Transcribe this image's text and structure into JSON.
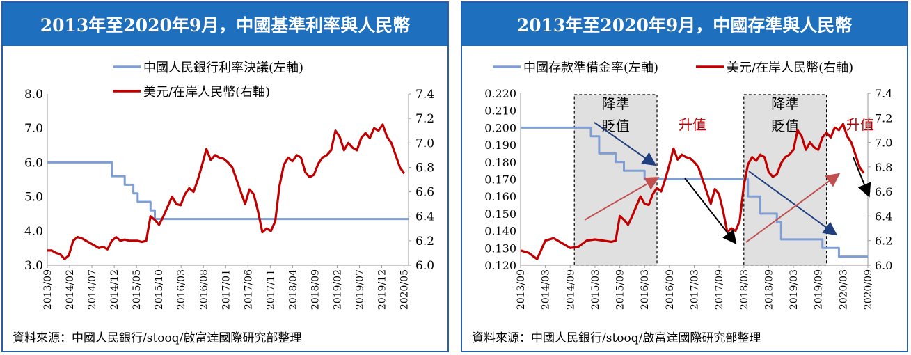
{
  "panels": [
    {
      "title": "2013年至2020年9月，中國基準利率與人民幣",
      "source": "資料來源：中國人民銀行/stooq/啟富達國際研究部整理"
    },
    {
      "title": "2013年至2020年9月，中國存準與人民幣",
      "source": "資料來源：中國人民銀行/stooq/啟富達國際研究部整理"
    }
  ],
  "chart_data": [
    {
      "type": "line",
      "left_axis": {
        "ylim": [
          3.0,
          8.0
        ],
        "ticks": [
          "3.0",
          "4.0",
          "5.0",
          "6.0",
          "7.0",
          "8.0"
        ]
      },
      "right_axis": {
        "ylim": [
          6.0,
          7.4
        ],
        "ticks": [
          "6.0",
          "6.2",
          "6.4",
          "6.6",
          "6.8",
          "7.0",
          "7.2",
          "7.4"
        ]
      },
      "x_ticks": [
        "2013/09",
        "2014/02",
        "2014/07",
        "2014/12",
        "2015/05",
        "2015/10",
        "2016/03",
        "2016/08",
        "2017/01",
        "2017/06",
        "2017/11",
        "2018/04",
        "2018/09",
        "2019/02",
        "2019/07",
        "2019/12",
        "2020/05"
      ],
      "x_range": [
        0,
        84
      ],
      "legend_position": "top",
      "grid": false,
      "series": [
        {
          "name": "中國人民銀行利率決議(左軸)",
          "axis": "left",
          "color": "#7f9fd4",
          "step": true,
          "points": [
            [
              0,
              6.0
            ],
            [
              15,
              6.0
            ],
            [
              15,
              5.6
            ],
            [
              18,
              5.6
            ],
            [
              18,
              5.35
            ],
            [
              20,
              5.35
            ],
            [
              20,
              5.1
            ],
            [
              21,
              5.1
            ],
            [
              21,
              4.85
            ],
            [
              24,
              4.85
            ],
            [
              24,
              4.6
            ],
            [
              25,
              4.6
            ],
            [
              25,
              4.35
            ],
            [
              84,
              4.35
            ]
          ]
        },
        {
          "name": "美元/在岸人民幣(右軸)",
          "axis": "right",
          "color": "#c00000",
          "points": [
            [
              0,
              6.12
            ],
            [
              1,
              6.12
            ],
            [
              2,
              6.1
            ],
            [
              3,
              6.09
            ],
            [
              4,
              6.05
            ],
            [
              5,
              6.08
            ],
            [
              6,
              6.2
            ],
            [
              7,
              6.23
            ],
            [
              8,
              6.22
            ],
            [
              9,
              6.2
            ],
            [
              10,
              6.18
            ],
            [
              11,
              6.16
            ],
            [
              12,
              6.14
            ],
            [
              13,
              6.15
            ],
            [
              14,
              6.13
            ],
            [
              15,
              6.2
            ],
            [
              16,
              6.23
            ],
            [
              17,
              6.2
            ],
            [
              18,
              6.21
            ],
            [
              19,
              6.2
            ],
            [
              20,
              6.2
            ],
            [
              21,
              6.2
            ],
            [
              22,
              6.19
            ],
            [
              23,
              6.2
            ],
            [
              24,
              6.4
            ],
            [
              25,
              6.37
            ],
            [
              26,
              6.33
            ],
            [
              27,
              6.4
            ],
            [
              28,
              6.48
            ],
            [
              29,
              6.56
            ],
            [
              30,
              6.5
            ],
            [
              31,
              6.49
            ],
            [
              32,
              6.58
            ],
            [
              33,
              6.63
            ],
            [
              34,
              6.6
            ],
            [
              35,
              6.7
            ],
            [
              36,
              6.82
            ],
            [
              37,
              6.95
            ],
            [
              38,
              6.86
            ],
            [
              39,
              6.9
            ],
            [
              40,
              6.88
            ],
            [
              41,
              6.87
            ],
            [
              42,
              6.84
            ],
            [
              43,
              6.8
            ],
            [
              44,
              6.7
            ],
            [
              45,
              6.6
            ],
            [
              46,
              6.5
            ],
            [
              47,
              6.62
            ],
            [
              48,
              6.58
            ],
            [
              49,
              6.44
            ],
            [
              50,
              6.27
            ],
            [
              51,
              6.3
            ],
            [
              52,
              6.28
            ],
            [
              53,
              6.36
            ],
            [
              54,
              6.65
            ],
            [
              55,
              6.82
            ],
            [
              56,
              6.88
            ],
            [
              57,
              6.85
            ],
            [
              58,
              6.9
            ],
            [
              59,
              6.88
            ],
            [
              60,
              6.76
            ],
            [
              61,
              6.72
            ],
            [
              62,
              6.74
            ],
            [
              63,
              6.83
            ],
            [
              64,
              6.88
            ],
            [
              65,
              6.9
            ],
            [
              66,
              6.94
            ],
            [
              67,
              7.1
            ],
            [
              68,
              7.05
            ],
            [
              69,
              6.94
            ],
            [
              70,
              7.0
            ],
            [
              71,
              6.96
            ],
            [
              72,
              6.94
            ],
            [
              73,
              7.04
            ],
            [
              74,
              7.08
            ],
            [
              75,
              7.04
            ],
            [
              76,
              7.12
            ],
            [
              77,
              7.1
            ],
            [
              78,
              7.15
            ],
            [
              79,
              7.05
            ],
            [
              80,
              7.0
            ],
            [
              81,
              6.9
            ],
            [
              82,
              6.8
            ],
            [
              83,
              6.75
            ]
          ]
        }
      ]
    },
    {
      "type": "line",
      "left_axis": {
        "ylim": [
          0.12,
          0.22
        ],
        "ticks": [
          "0.120",
          "0.130",
          "0.140",
          "0.150",
          "0.160",
          "0.170",
          "0.180",
          "0.190",
          "0.200",
          "0.210",
          "0.220"
        ]
      },
      "right_axis": {
        "ylim": [
          6.0,
          7.4
        ],
        "ticks": [
          "6.0",
          "6.2",
          "6.4",
          "6.6",
          "6.8",
          "7.0",
          "7.2",
          "7.4"
        ]
      },
      "x_ticks": [
        "2013/09",
        "2014/03",
        "2014/09",
        "2015/03",
        "2015/09",
        "2016/03",
        "2016/09",
        "2017/03",
        "2017/09",
        "2018/03",
        "2018/09",
        "2019/03",
        "2019/09",
        "2020/03",
        "2020/09"
      ],
      "x_range": [
        0,
        84
      ],
      "legend_position": "top",
      "grid": false,
      "series": [
        {
          "name": "中國存款準備金率(左軸)",
          "axis": "left",
          "color": "#7f9fd4",
          "step": true,
          "points": [
            [
              0,
              0.2
            ],
            [
              17,
              0.2
            ],
            [
              17,
              0.195
            ],
            [
              19,
              0.195
            ],
            [
              19,
              0.185
            ],
            [
              23,
              0.185
            ],
            [
              23,
              0.18
            ],
            [
              25,
              0.18
            ],
            [
              25,
              0.175
            ],
            [
              30,
              0.175
            ],
            [
              30,
              0.17
            ],
            [
              55,
              0.17
            ],
            [
              55,
              0.16
            ],
            [
              58,
              0.16
            ],
            [
              58,
              0.15
            ],
            [
              62,
              0.15
            ],
            [
              62,
              0.145
            ],
            [
              63,
              0.145
            ],
            [
              63,
              0.135
            ],
            [
              73,
              0.135
            ],
            [
              73,
              0.13
            ],
            [
              77,
              0.13
            ],
            [
              77,
              0.125
            ],
            [
              84,
              0.125
            ]
          ]
        },
        {
          "name": "美元/在岸人民幣(右軸)",
          "axis": "right",
          "color": "#c00000",
          "points": [
            [
              0,
              6.12
            ],
            [
              2,
              6.1
            ],
            [
              4,
              6.05
            ],
            [
              6,
              6.2
            ],
            [
              8,
              6.22
            ],
            [
              10,
              6.18
            ],
            [
              12,
              6.14
            ],
            [
              14,
              6.15
            ],
            [
              16,
              6.2
            ],
            [
              18,
              6.21
            ],
            [
              20,
              6.2
            ],
            [
              22,
              6.19
            ],
            [
              23,
              6.2
            ],
            [
              24,
              6.4
            ],
            [
              25,
              6.37
            ],
            [
              26,
              6.33
            ],
            [
              27,
              6.4
            ],
            [
              28,
              6.48
            ],
            [
              29,
              6.56
            ],
            [
              30,
              6.5
            ],
            [
              31,
              6.49
            ],
            [
              32,
              6.58
            ],
            [
              33,
              6.63
            ],
            [
              34,
              6.6
            ],
            [
              35,
              6.7
            ],
            [
              36,
              6.82
            ],
            [
              37,
              6.95
            ],
            [
              38,
              6.86
            ],
            [
              39,
              6.9
            ],
            [
              40,
              6.88
            ],
            [
              41,
              6.87
            ],
            [
              42,
              6.84
            ],
            [
              43,
              6.8
            ],
            [
              44,
              6.7
            ],
            [
              45,
              6.6
            ],
            [
              46,
              6.5
            ],
            [
              47,
              6.62
            ],
            [
              48,
              6.58
            ],
            [
              49,
              6.44
            ],
            [
              50,
              6.27
            ],
            [
              51,
              6.3
            ],
            [
              52,
              6.28
            ],
            [
              53,
              6.36
            ],
            [
              54,
              6.65
            ],
            [
              55,
              6.82
            ],
            [
              56,
              6.88
            ],
            [
              57,
              6.85
            ],
            [
              58,
              6.9
            ],
            [
              59,
              6.88
            ],
            [
              60,
              6.76
            ],
            [
              61,
              6.72
            ],
            [
              62,
              6.74
            ],
            [
              63,
              6.83
            ],
            [
              64,
              6.88
            ],
            [
              65,
              6.9
            ],
            [
              66,
              6.94
            ],
            [
              67,
              7.1
            ],
            [
              68,
              7.05
            ],
            [
              69,
              6.94
            ],
            [
              70,
              7.0
            ],
            [
              71,
              6.96
            ],
            [
              72,
              6.94
            ],
            [
              73,
              7.04
            ],
            [
              74,
              7.08
            ],
            [
              75,
              7.04
            ],
            [
              76,
              7.12
            ],
            [
              77,
              7.1
            ],
            [
              78,
              7.15
            ],
            [
              79,
              7.05
            ],
            [
              80,
              7.0
            ],
            [
              81,
              6.9
            ],
            [
              82,
              6.8
            ],
            [
              83,
              6.75
            ]
          ]
        }
      ],
      "annotations": {
        "boxes": [
          {
            "x_range": [
              13,
              33
            ],
            "label_top": "降準",
            "label_bottom": "貶值"
          },
          {
            "x_range": [
              54,
              74
            ],
            "label_top": "降準",
            "label_bottom": "貶值"
          }
        ],
        "red_labels": [
          "升值",
          "升值"
        ]
      }
    }
  ]
}
